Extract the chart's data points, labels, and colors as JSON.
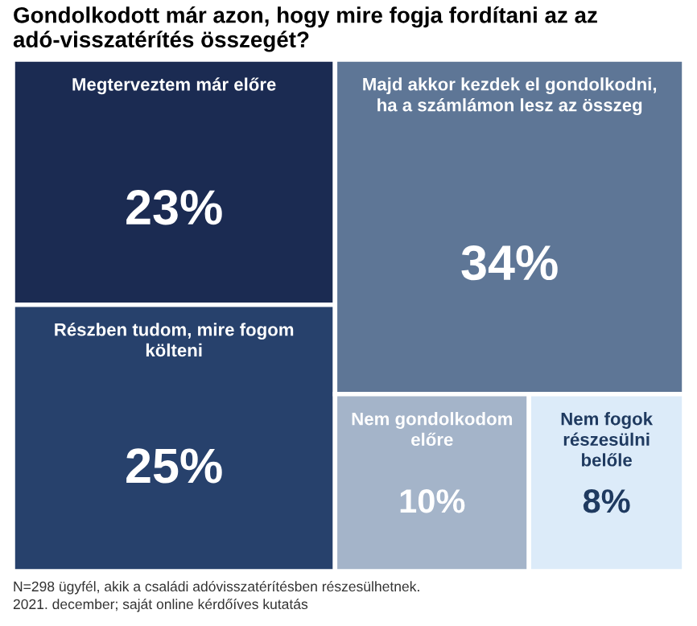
{
  "chart_data": {
    "type": "other",
    "title": "Gondolkodott már azon, hogy mire fogja fordítani az az adó-visszatérítés összegét?",
    "categories": [
      "Megterveztem már előre",
      "Részben tudom, mire fogom költeni",
      "Majd akkor kezdek el gondolkodni, ha a számlámon lesz az összeg",
      "Nem gondolkodom előre",
      "Nem fogok részesülni belőle"
    ],
    "values": [
      23,
      25,
      34,
      10,
      8
    ],
    "value_labels": [
      "23%",
      "25%",
      "34%",
      "10%",
      "8%"
    ],
    "colors": [
      "#1b2b52",
      "#27416c",
      "#5e7696",
      "#a4b4c9",
      "#dcebf9"
    ],
    "annotations": [
      "N=298 ügyfél, akik a családi adóvisszatérítésben részesülhetnek.",
      "2021. december; saját online kérdőíves kutatás"
    ]
  }
}
